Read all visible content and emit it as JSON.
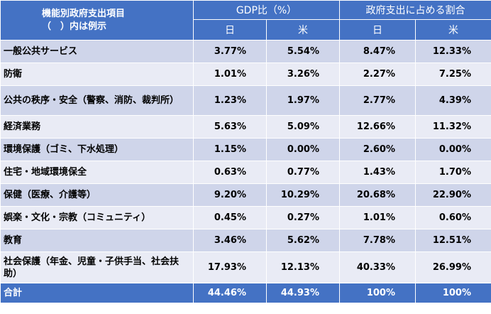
{
  "header": {
    "item_line1": "機能別政府支出項目",
    "item_line2": "（　）内は例示",
    "gdp_group": "GDP比（%）",
    "share_group": "政府支出に占める割合",
    "japan": "日",
    "us": "米"
  },
  "rows": [
    {
      "label": "一般公共サービス",
      "gdp_jp": "3.77%",
      "gdp_us": "5.54%",
      "share_jp": "8.47%",
      "share_us": "12.33%"
    },
    {
      "label": "防衛",
      "gdp_jp": "1.01%",
      "gdp_us": "3.26%",
      "share_jp": "2.27%",
      "share_us": "7.25%"
    },
    {
      "label": "公共の秩序・安全（警察、消防、裁判所）",
      "gdp_jp": "1.23%",
      "gdp_us": "1.97%",
      "share_jp": "2.77%",
      "share_us": "4.39%"
    },
    {
      "label": "経済業務",
      "gdp_jp": "5.63%",
      "gdp_us": "5.09%",
      "share_jp": "12.66%",
      "share_us": "11.32%"
    },
    {
      "label": "環境保護（ゴミ、下水処理）",
      "gdp_jp": "1.15%",
      "gdp_us": "0.00%",
      "share_jp": "2.60%",
      "share_us": "0.00%"
    },
    {
      "label": "住宅・地域環境保全",
      "gdp_jp": "0.63%",
      "gdp_us": "0.77%",
      "share_jp": "1.43%",
      "share_us": "1.70%"
    },
    {
      "label": "保健（医療、介護等）",
      "gdp_jp": "9.20%",
      "gdp_us": "10.29%",
      "share_jp": "20.68%",
      "share_us": "22.90%"
    },
    {
      "label": "娯楽・文化・宗教（コミュニティ）",
      "gdp_jp": "0.45%",
      "gdp_us": "0.27%",
      "share_jp": "1.01%",
      "share_us": "0.60%"
    },
    {
      "label": "教育",
      "gdp_jp": "3.46%",
      "gdp_us": "5.62%",
      "share_jp": "7.78%",
      "share_us": "12.51%"
    },
    {
      "label": "社会保護（年金、児童・子供手当、社会扶助）",
      "gdp_jp": "17.93%",
      "gdp_us": "12.13%",
      "share_jp": "40.33%",
      "share_us": "26.99%"
    }
  ],
  "total": {
    "label": "合計",
    "gdp_jp": "44.46%",
    "gdp_us": "44.93%",
    "share_jp": "100%",
    "share_us": "100%"
  }
}
